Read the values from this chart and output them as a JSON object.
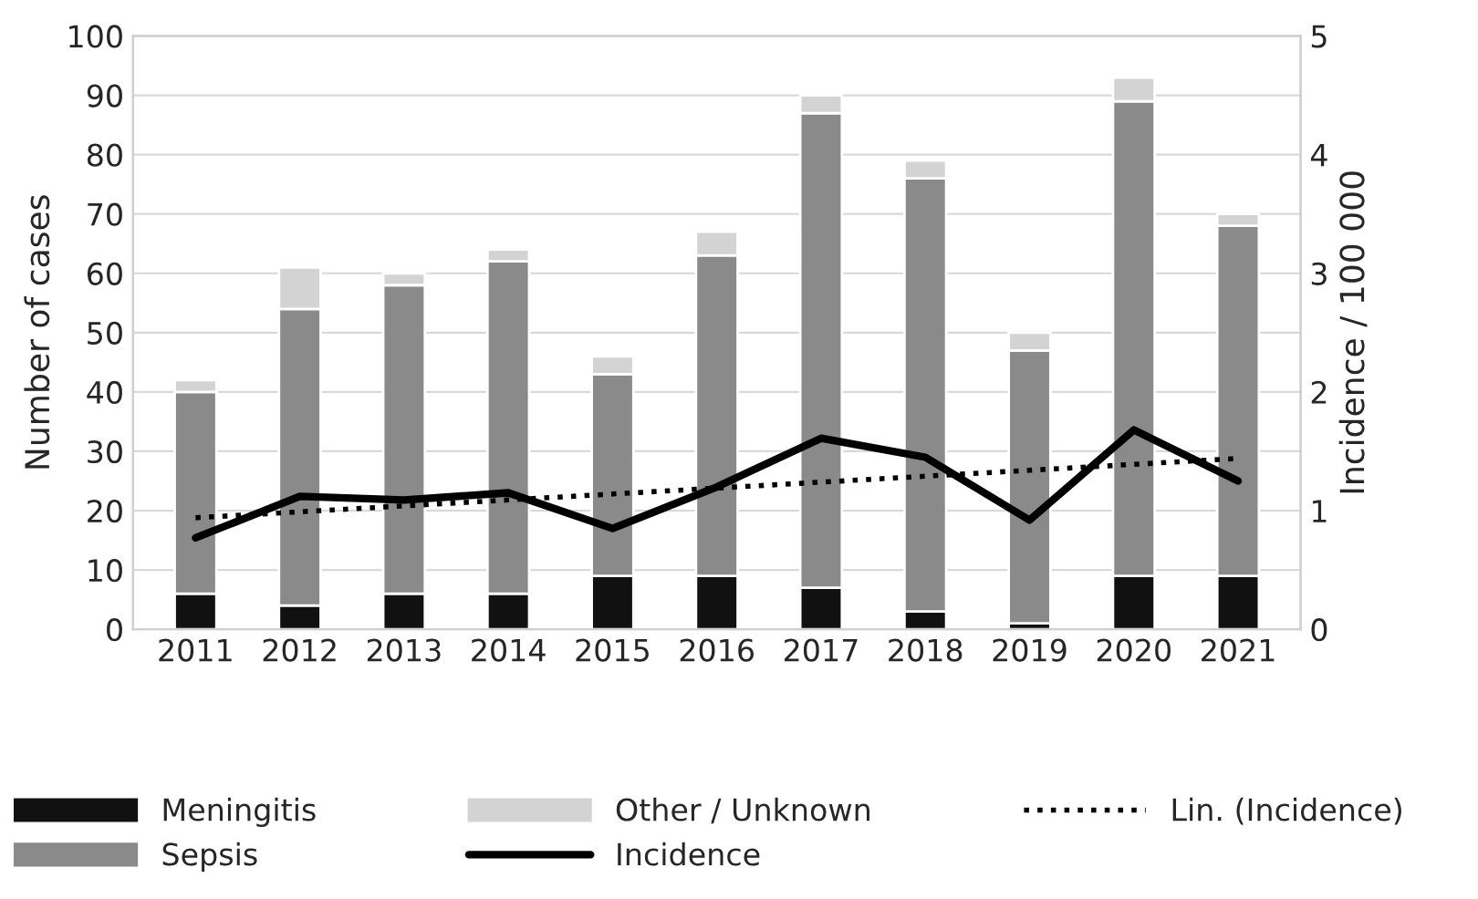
{
  "chart_data": {
    "type": "bar",
    "stacked": true,
    "categories": [
      "2011",
      "2012",
      "2013",
      "2014",
      "2015",
      "2016",
      "2017",
      "2018",
      "2019",
      "2020",
      "2021"
    ],
    "series": [
      {
        "name": "Meningitis",
        "color": "#111111",
        "values": [
          6,
          4,
          6,
          6,
          9,
          9,
          7,
          3,
          1,
          9,
          9
        ]
      },
      {
        "name": "Sepsis",
        "color": "#8a8a8a",
        "values": [
          34,
          50,
          52,
          56,
          34,
          54,
          80,
          73,
          46,
          80,
          59
        ]
      },
      {
        "name": "Other / Unknown",
        "color": "#d3d3d3",
        "values": [
          2,
          7,
          2,
          2,
          3,
          4,
          3,
          3,
          3,
          4,
          2
        ]
      },
      {
        "name": "Incidence",
        "type": "line",
        "axis": "y2",
        "color": "#000000",
        "line_style": "solid",
        "values": [
          0.77,
          1.12,
          1.09,
          1.15,
          0.85,
          1.2,
          1.61,
          1.45,
          0.92,
          1.68,
          1.25
        ]
      },
      {
        "name": "Lin. (Incidence)",
        "type": "line",
        "axis": "y2",
        "color": "#000000",
        "line_style": "dotted",
        "values": [
          0.94,
          0.99,
          1.04,
          1.09,
          1.14,
          1.19,
          1.24,
          1.29,
          1.34,
          1.39,
          1.44
        ]
      }
    ],
    "ylabel": "Number of cases",
    "y2label": "Incidence / 100 000",
    "ylim": [
      0,
      100
    ],
    "yticks": [
      0,
      10,
      20,
      30,
      40,
      50,
      60,
      70,
      80,
      90,
      100
    ],
    "y2lim": [
      0,
      5
    ],
    "y2ticks": [
      0,
      1,
      2,
      3,
      4,
      5
    ],
    "grid": "y",
    "legend": "bottom"
  }
}
